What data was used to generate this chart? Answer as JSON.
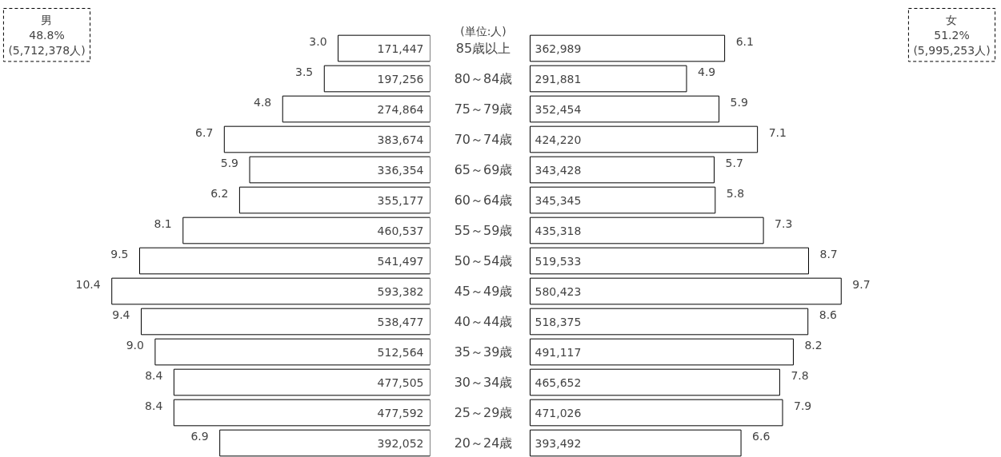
{
  "chart_data": [
    {
      "type": "bar",
      "orientation": "horizontal",
      "categories": [
        "85歳以上",
        "80～84歳",
        "75～79歳",
        "70～74歳",
        "65～69歳",
        "60～64歳",
        "55～59歳",
        "50～54歳",
        "45～49歳",
        "40～44歳",
        "35～39歳",
        "30～34歳",
        "25～29歳",
        "20～24歳"
      ],
      "series": [
        {
          "color": "#ffffff",
          "values": [
            171447,
            197256,
            274864,
            383674,
            336354,
            355177,
            460537,
            541497,
            593382,
            538477,
            512564,
            477505,
            477592,
            392052
          ],
          "value_labels": [
            "171,447",
            "197,256",
            "274,864",
            "383,674",
            "336,354",
            "355,177",
            "460,537",
            "541,497",
            "593,382",
            "538,477",
            "512,564",
            "477,505",
            "477,592",
            "392,052"
          ]
        }
      ],
      "tick_labels": false,
      "grid": false,
      "annotations": [
        "男\n48.8%\n(5,712,378人)",
        {
          "text": "3.0",
          "x": 171447,
          "y": "85歳以上"
        },
        {
          "text": "3.5",
          "x": 197256,
          "y": "80～84歳"
        },
        {
          "text": "4.8",
          "x": 274864,
          "y": "75～79歳"
        },
        {
          "text": "6.7",
          "x": 383674,
          "y": "70～74歳"
        },
        {
          "text": "5.9",
          "x": 336354,
          "y": "65～69歳"
        },
        {
          "text": "6.2",
          "x": 355177,
          "y": "60～64歳"
        },
        {
          "text": "8.1",
          "x": 460537,
          "y": "55～59歳"
        },
        {
          "text": "9.5",
          "x": 541497,
          "y": "50～54歳"
        },
        {
          "text": "10.4",
          "x": 593382,
          "y": "45～49歳"
        },
        {
          "text": "9.4",
          "x": 538477,
          "y": "40～44歳"
        },
        {
          "text": "9.0",
          "x": 512564,
          "y": "35～39歳"
        },
        {
          "text": "8.4",
          "x": 477505,
          "y": "30～34歳"
        },
        {
          "text": "8.4",
          "x": 477592,
          "y": "25～29歳"
        },
        {
          "text": "6.9",
          "x": 392052,
          "y": "20～24歳"
        }
      ]
    },
    {
      "type": "bar",
      "orientation": "horizontal",
      "categories": [
        "85歳以上",
        "80～84歳",
        "75～79歳",
        "70～74歳",
        "65～69歳",
        "60～64歳",
        "55～59歳",
        "50～54歳",
        "45～49歳",
        "40～44歳",
        "35～39歳",
        "30～34歳",
        "25～29歳",
        "20～24歳"
      ],
      "series": [
        {
          "color": "#ffffff",
          "values": [
            362989,
            291881,
            352454,
            424220,
            343428,
            345345,
            435318,
            519533,
            580423,
            518375,
            491117,
            465652,
            471026,
            393492
          ],
          "value_labels": [
            "362,989",
            "291,881",
            "352,454",
            "424,220",
            "343,428",
            "345,345",
            "435,318",
            "519,533",
            "580,423",
            "518,375",
            "491,117",
            "465,652",
            "471,026",
            "393,492"
          ]
        }
      ],
      "tick_labels": "y",
      "grid": false,
      "annotations": [
        "(単位:人)",
        "女\n51.2%\n(5,995,253人)",
        {
          "text": "6.1",
          "x": 362989,
          "y": "85歳以上"
        },
        {
          "text": "4.9",
          "x": 291881,
          "y": "80～84歳"
        },
        {
          "text": "5.9",
          "x": 352454,
          "y": "75～79歳"
        },
        {
          "text": "7.1",
          "x": 424220,
          "y": "70～74歳"
        },
        {
          "text": "5.7",
          "x": 343428,
          "y": "65～69歳"
        },
        {
          "text": "5.8",
          "x": 345345,
          "y": "60～64歳"
        },
        {
          "text": "7.3",
          "x": 435318,
          "y": "55～59歳"
        },
        {
          "text": "8.7",
          "x": 519533,
          "y": "50～54歳"
        },
        {
          "text": "9.7",
          "x": 580423,
          "y": "45～49歳"
        },
        {
          "text": "8.6",
          "x": 518375,
          "y": "40～44歳"
        },
        {
          "text": "8.2",
          "x": 491117,
          "y": "35～39歳"
        },
        {
          "text": "7.8",
          "x": 465652,
          "y": "30～34歳"
        },
        {
          "text": "7.9",
          "x": 471026,
          "y": "25～29歳"
        },
        {
          "text": "6.6",
          "x": 393492,
          "y": "20～24歳"
        }
      ]
    }
  ]
}
